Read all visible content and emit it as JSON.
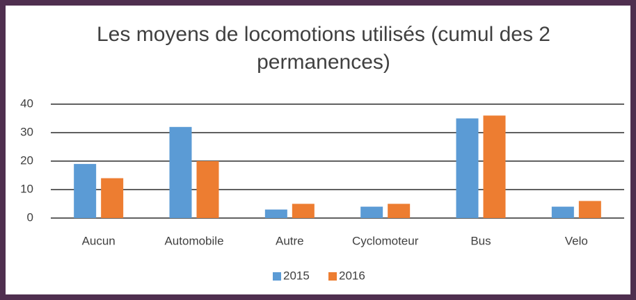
{
  "chart_data": {
    "type": "bar",
    "title": "Les moyens de locomotions utilisés (cumul des 2 permanences)",
    "categories": [
      "Aucun",
      "Automobile",
      "Autre",
      "Cyclomoteur",
      "Bus",
      "Velo"
    ],
    "series": [
      {
        "name": "2015",
        "color": "#5b9bd5",
        "values": [
          19,
          32,
          3,
          4,
          35,
          4
        ]
      },
      {
        "name": "2016",
        "color": "#ed7d31",
        "values": [
          14,
          20,
          5,
          5,
          36,
          6
        ]
      }
    ],
    "ylim": [
      0,
      40
    ],
    "yticks": [
      0,
      10,
      20,
      30,
      40
    ],
    "grid": true,
    "legend": "bottom"
  }
}
